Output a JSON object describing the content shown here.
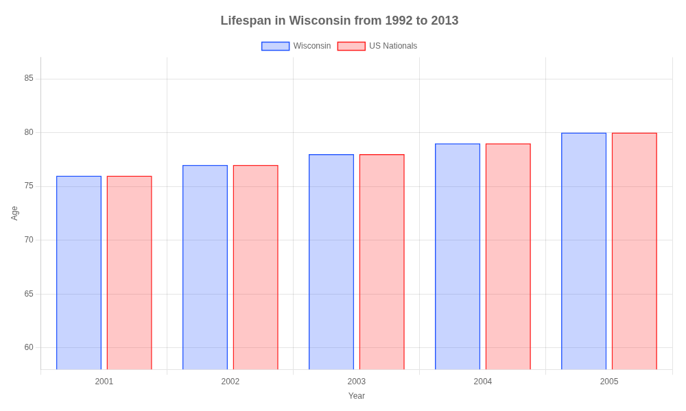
{
  "chart_data": {
    "type": "bar",
    "title": "Lifespan in Wisconsin from 1992 to 2013",
    "x_label": "Year",
    "y_label": "Age",
    "categories": [
      "2001",
      "2002",
      "2003",
      "2004",
      "2005"
    ],
    "series": [
      {
        "name": "Wisconsin",
        "color": "#2255ff",
        "values": [
          76,
          77,
          78,
          79,
          80
        ]
      },
      {
        "name": "US Nationals",
        "color": "#ff2020",
        "values": [
          76,
          77,
          78,
          79,
          80
        ]
      }
    ],
    "ylim": [
      58,
      87
    ],
    "yticks": [
      60,
      65,
      70,
      75,
      80,
      85
    ],
    "grid": true,
    "legend": "top"
  }
}
